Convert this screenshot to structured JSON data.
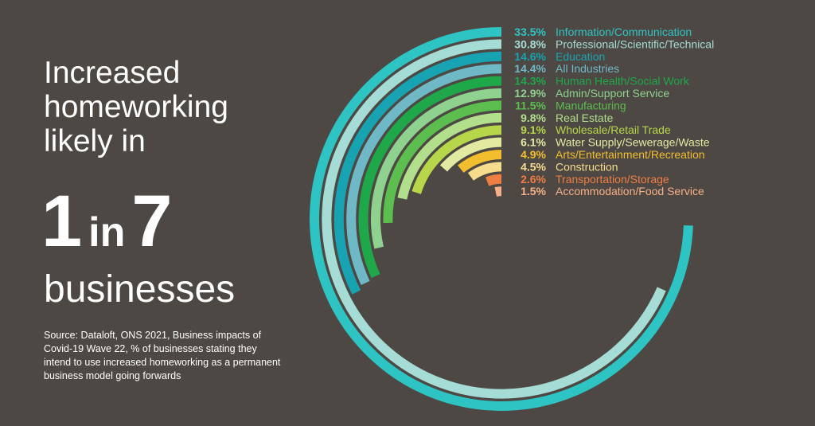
{
  "headline": {
    "line1": "Increased",
    "line2": "homeworking",
    "line3": "likely in",
    "num1": "1",
    "in": "in",
    "num2": "7",
    "line5": "businesses"
  },
  "source": "Source: Dataloft, ONS 2021, Business impacts of Covid-19 Wave 22, % of businesses stating they intend to use increased homeworking as a permanent business model going forwards",
  "chart_data": {
    "type": "radial-bar",
    "unit": "%",
    "series": [
      {
        "label": "Information/Communication",
        "value": 33.5,
        "value_label": "33.5%",
        "color": "#2ec4c4"
      },
      {
        "label": "Professional/Scientific/Technical",
        "value": 30.8,
        "value_label": "30.8%",
        "color": "#a6dcd6"
      },
      {
        "label": "Education",
        "value": 14.6,
        "value_label": "14.6%",
        "color": "#17a3b1"
      },
      {
        "label": "All Industries",
        "value": 14.4,
        "value_label": "14.4%",
        "color": "#6fb8c6"
      },
      {
        "label": "Human Health/Social Work",
        "value": 14.3,
        "value_label": "14.3%",
        "color": "#1fa84a"
      },
      {
        "label": "Admin/Support Service",
        "value": 12.9,
        "value_label": "12.9%",
        "color": "#8fd18f"
      },
      {
        "label": "Manufacturing",
        "value": 11.5,
        "value_label": "11.5%",
        "color": "#5cbe4f"
      },
      {
        "label": "Real Estate",
        "value": 9.8,
        "value_label": "9.8%",
        "color": "#b2df8c"
      },
      {
        "label": "Wholesale/Retail Trade",
        "value": 9.1,
        "value_label": "9.1%",
        "color": "#b8d64a"
      },
      {
        "label": "Water Supply/Sewerage/Waste",
        "value": 6.1,
        "value_label": "6.1%",
        "color": "#e2eaa2"
      },
      {
        "label": "Arts/Entertainment/Recreation",
        "value": 4.9,
        "value_label": "4.9%",
        "color": "#f2be2e"
      },
      {
        "label": "Construction",
        "value": 4.5,
        "value_label": "4.5%",
        "color": "#f7dc8e"
      },
      {
        "label": "Transportation/Storage",
        "value": 2.6,
        "value_label": "2.6%",
        "color": "#ef7e43"
      },
      {
        "label": "Accommodation/Food Service",
        "value": 1.5,
        "value_label": "1.5%",
        "color": "#f6b088"
      }
    ]
  }
}
